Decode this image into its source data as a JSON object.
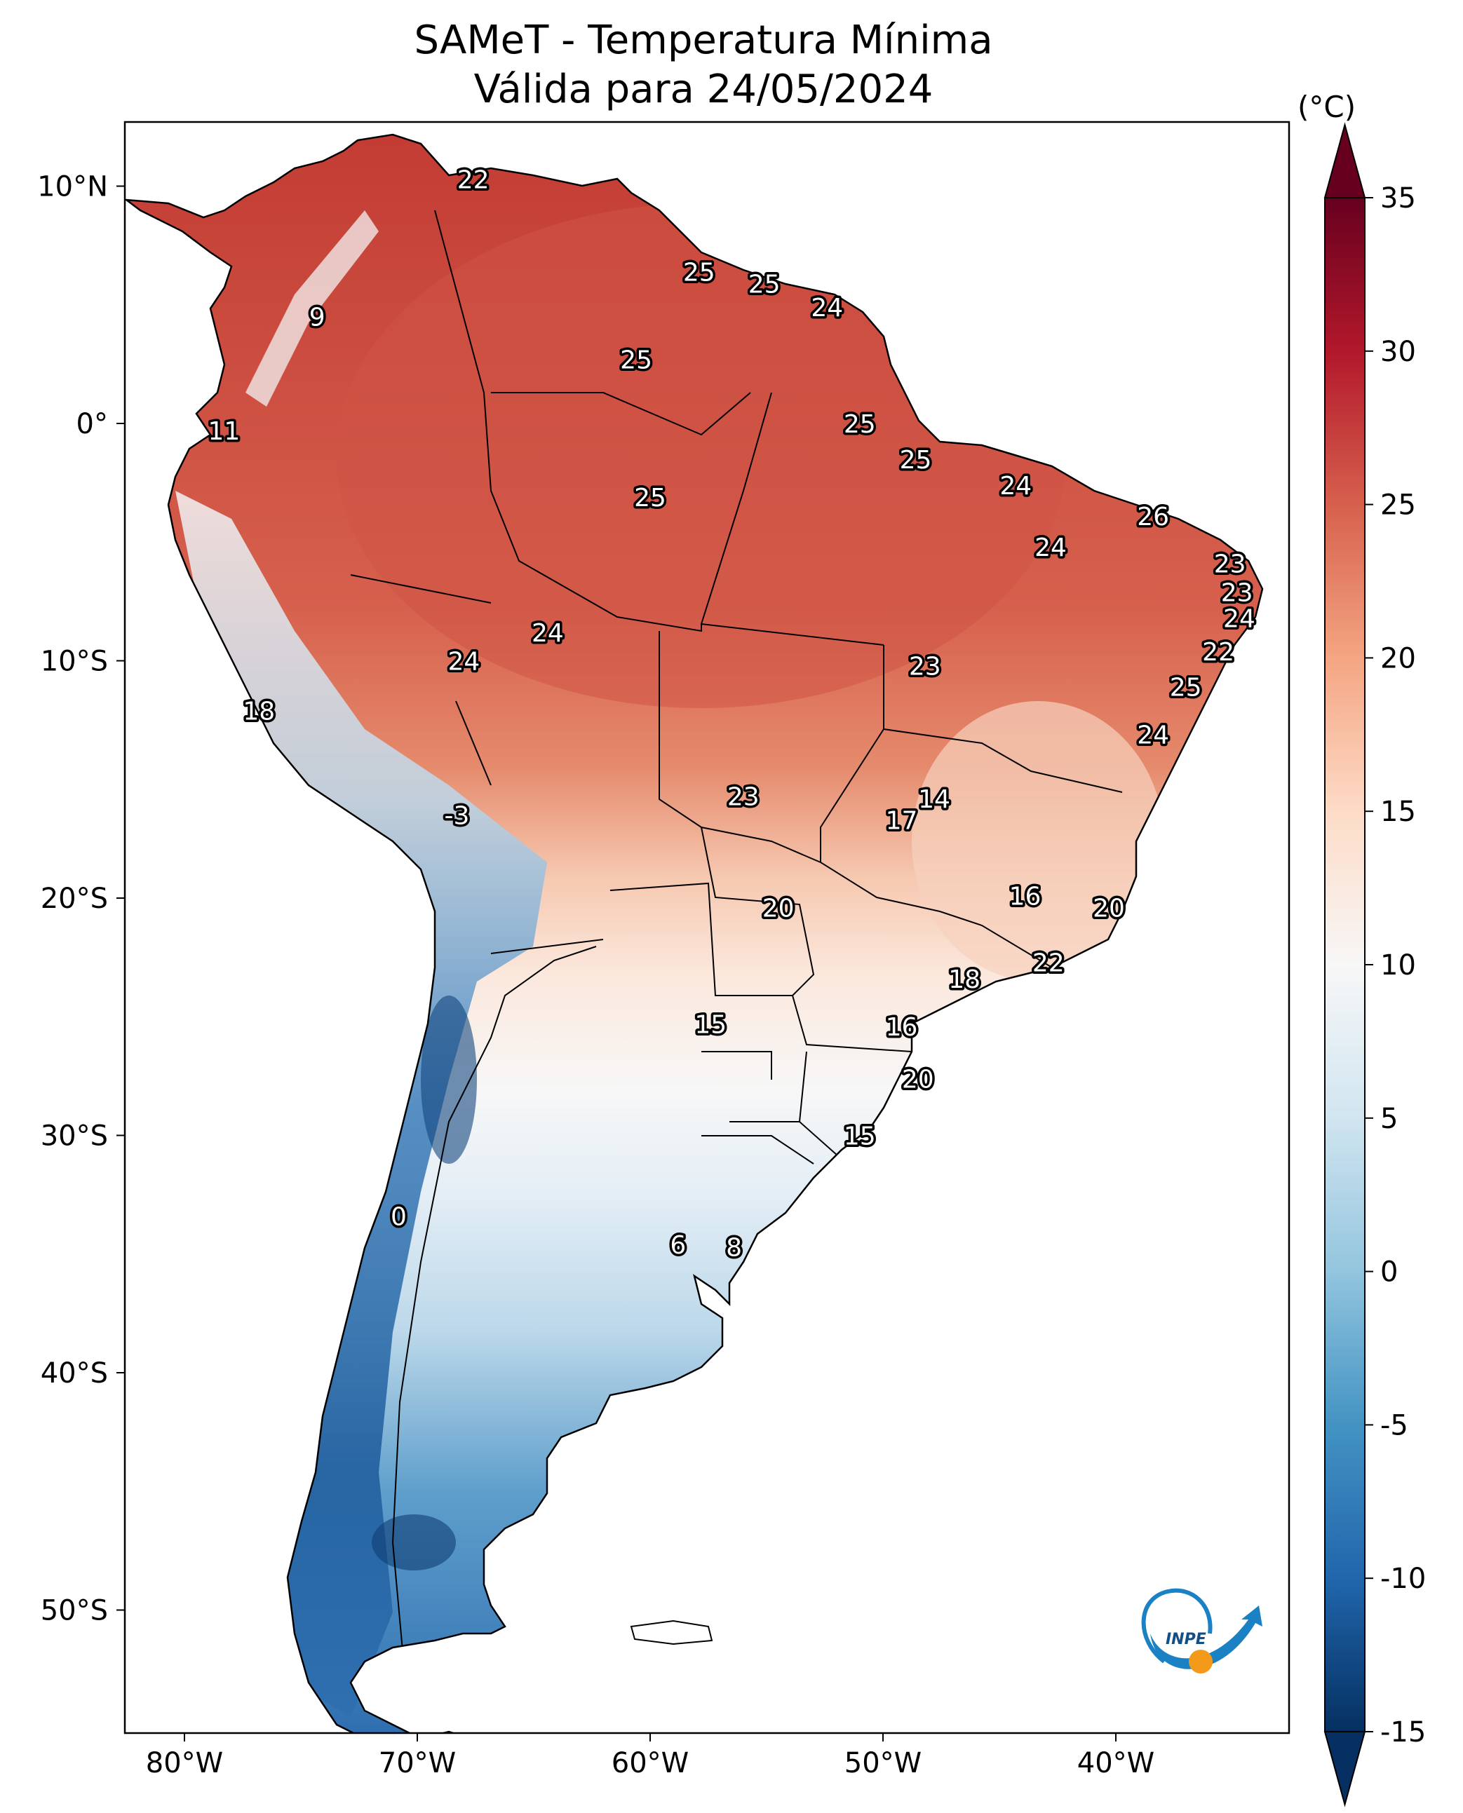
{
  "title": {
    "line1": "SAMeT - Temperatura Mínima",
    "line2": "Válida para 24/05/2024"
  },
  "colorbar": {
    "unit": "(°C)",
    "ticks": [
      "35",
      "30",
      "25",
      "20",
      "15",
      "10",
      "5",
      "0",
      "-5",
      "-10",
      "-15"
    ],
    "min": -15,
    "max": 35,
    "colors": [
      "#053061",
      "#2166ac",
      "#4393c3",
      "#92c5de",
      "#d1e5f0",
      "#f7f7f7",
      "#fddbc7",
      "#f4a582",
      "#d6604d",
      "#b2182b",
      "#67001f"
    ]
  },
  "axes": {
    "lon_labels": [
      "80°W",
      "70°W",
      "60°W",
      "50°W",
      "40°W"
    ],
    "lat_labels": [
      "10°N",
      "0°",
      "10°S",
      "20°S",
      "30°S",
      "40°S",
      "50°S"
    ]
  },
  "map_labels": [
    {
      "text": "22",
      "lon": -67.6,
      "lat": 10.3
    },
    {
      "text": "25",
      "lon": -57.9,
      "lat": 6.4
    },
    {
      "text": "25",
      "lon": -55.1,
      "lat": 5.9
    },
    {
      "text": "24",
      "lon": -52.4,
      "lat": 4.9
    },
    {
      "text": "9",
      "lon": -74.3,
      "lat": 4.5
    },
    {
      "text": "25",
      "lon": -60.6,
      "lat": 2.7
    },
    {
      "text": "11",
      "lon": -78.3,
      "lat": -0.3
    },
    {
      "text": "25",
      "lon": -51.0,
      "lat": 0.0
    },
    {
      "text": "25",
      "lon": -48.6,
      "lat": -1.5
    },
    {
      "text": "24",
      "lon": -44.3,
      "lat": -2.6
    },
    {
      "text": "25",
      "lon": -60.0,
      "lat": -3.1
    },
    {
      "text": "26",
      "lon": -38.4,
      "lat": -3.9
    },
    {
      "text": "24",
      "lon": -42.8,
      "lat": -5.2
    },
    {
      "text": "23",
      "lon": -35.1,
      "lat": -5.9
    },
    {
      "text": "23",
      "lon": -34.8,
      "lat": -7.1
    },
    {
      "text": "24",
      "lon": -34.7,
      "lat": -8.2
    },
    {
      "text": "24",
      "lon": -64.4,
      "lat": -8.8
    },
    {
      "text": "22",
      "lon": -35.6,
      "lat": -9.6
    },
    {
      "text": "24",
      "lon": -68.0,
      "lat": -10.0
    },
    {
      "text": "23",
      "lon": -48.2,
      "lat": -10.2
    },
    {
      "text": "25",
      "lon": -37.0,
      "lat": -11.1
    },
    {
      "text": "18",
      "lon": -76.8,
      "lat": -12.1
    },
    {
      "text": "24",
      "lon": -38.4,
      "lat": -13.1
    },
    {
      "text": "14",
      "lon": -47.8,
      "lat": -15.8
    },
    {
      "text": "23",
      "lon": -56.0,
      "lat": -15.7
    },
    {
      "text": "17",
      "lon": -49.2,
      "lat": -16.7
    },
    {
      "text": "-3",
      "lon": -68.3,
      "lat": -16.5
    },
    {
      "text": "16",
      "lon": -43.9,
      "lat": -19.9
    },
    {
      "text": "20",
      "lon": -54.5,
      "lat": -20.4
    },
    {
      "text": "20",
      "lon": -40.3,
      "lat": -20.4
    },
    {
      "text": "22",
      "lon": -42.9,
      "lat": -22.7
    },
    {
      "text": "18",
      "lon": -46.5,
      "lat": -23.4
    },
    {
      "text": "15",
      "lon": -57.4,
      "lat": -25.3
    },
    {
      "text": "16",
      "lon": -49.2,
      "lat": -25.4
    },
    {
      "text": "20",
      "lon": -48.5,
      "lat": -27.6
    },
    {
      "text": "15",
      "lon": -51.0,
      "lat": -30.0
    },
    {
      "text": "0",
      "lon": -70.8,
      "lat": -33.4
    },
    {
      "text": "6",
      "lon": -58.8,
      "lat": -34.6
    },
    {
      "text": "8",
      "lon": -56.4,
      "lat": -34.7
    }
  ],
  "logo": {
    "text": "INPE"
  }
}
